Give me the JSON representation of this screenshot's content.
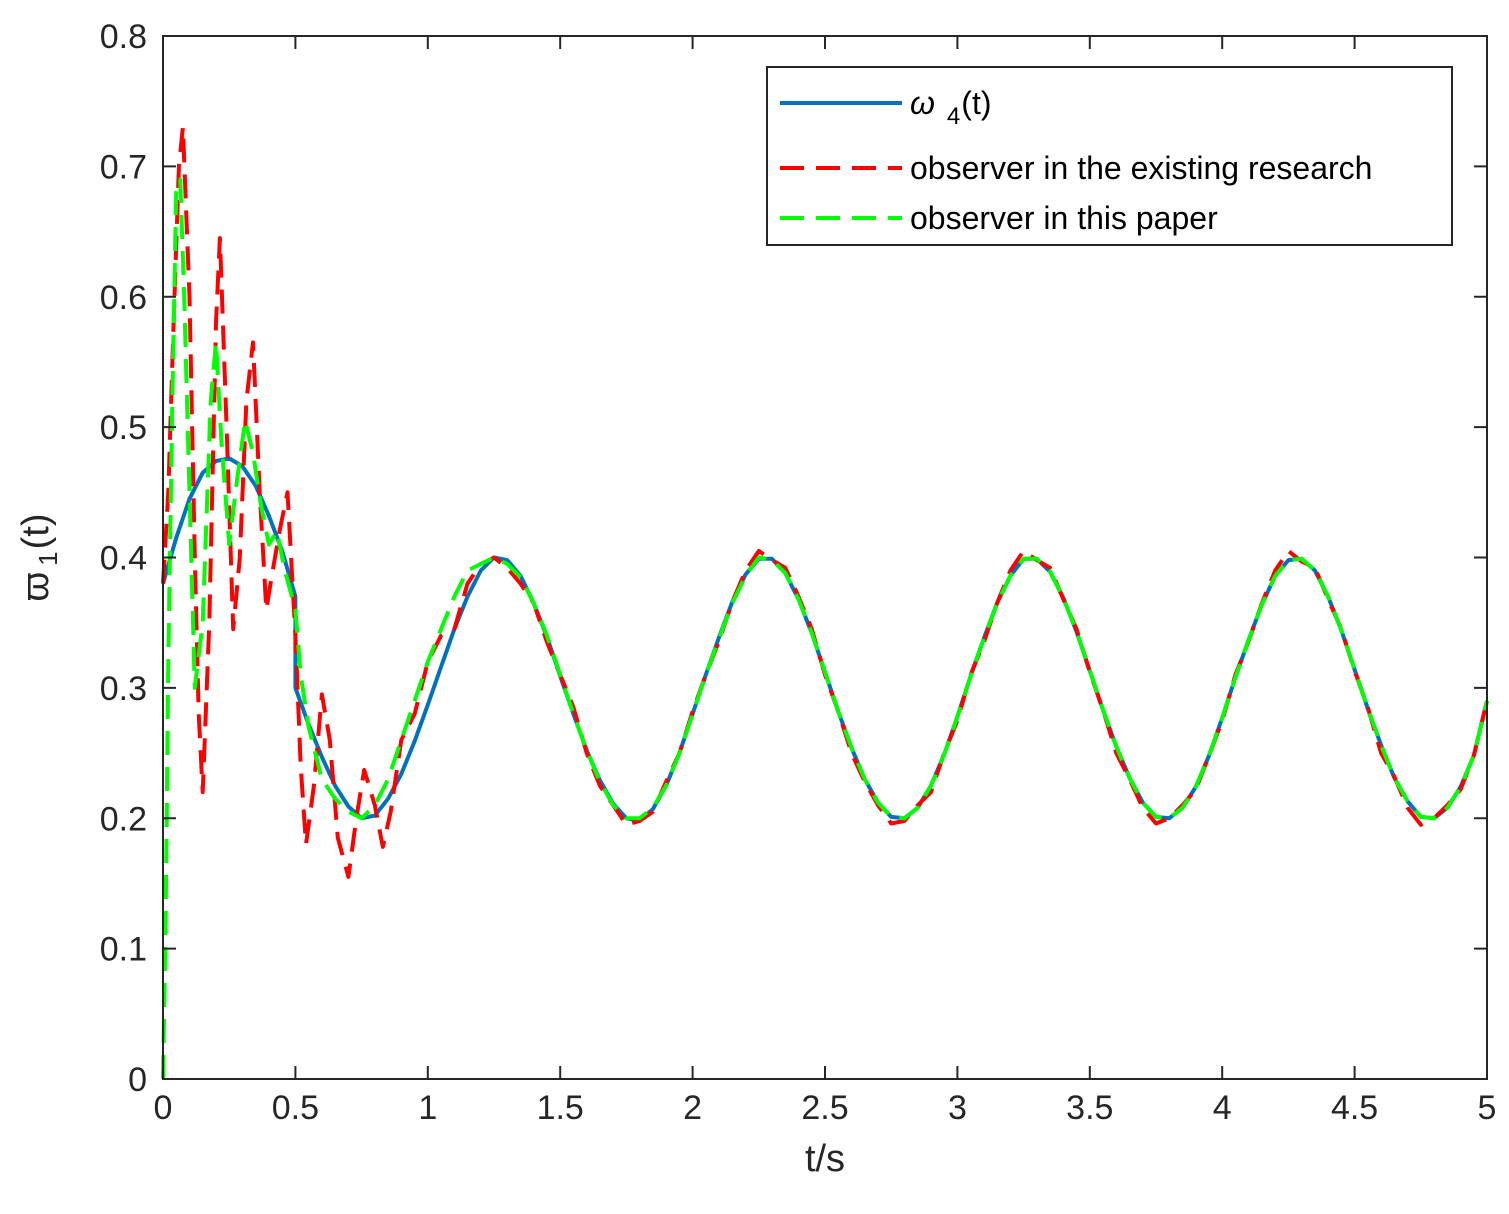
{
  "chart_data": {
    "type": "line",
    "xlabel": "t/s",
    "ylabel_symbol": "ϖ",
    "ylabel_sub": "1",
    "ylabel_suffix": "(t)",
    "xlim": [
      0,
      5
    ],
    "ylim": [
      0,
      0.8
    ],
    "xticks": [
      0,
      0.5,
      1,
      1.5,
      2,
      2.5,
      3,
      3.5,
      4,
      4.5,
      5
    ],
    "xtick_labels": [
      "0",
      "0.5",
      "1",
      "1.5",
      "2",
      "2.5",
      "3",
      "3.5",
      "4",
      "4.5",
      "5"
    ],
    "yticks": [
      0,
      0.1,
      0.2,
      0.3,
      0.4,
      0.5,
      0.6,
      0.7,
      0.8
    ],
    "ytick_labels": [
      "0",
      "0.1",
      "0.2",
      "0.3",
      "0.4",
      "0.5",
      "0.6",
      "0.7",
      "0.8"
    ],
    "grid": false,
    "legend_position": "top-right",
    "series": [
      {
        "name_symbol": "ω",
        "name_sub": "4",
        "name_suffix": "(t)",
        "color": "#0072BD",
        "style": "solid",
        "x": [
          0,
          0.05,
          0.1,
          0.15,
          0.2,
          0.25,
          0.3,
          0.35,
          0.4,
          0.45,
          0.5,
          0.5,
          0.55,
          0.6,
          0.65,
          0.7,
          0.75,
          0.8,
          0.85,
          0.9,
          0.95,
          1.0,
          1.05,
          1.1,
          1.15,
          1.2,
          1.25,
          1.3,
          1.35,
          1.4,
          1.45,
          1.5,
          1.55,
          1.6,
          1.65,
          1.7,
          1.75,
          1.8,
          1.85,
          1.9,
          1.95,
          2.0,
          2.05,
          2.1,
          2.15,
          2.2,
          2.25,
          2.3,
          2.35,
          2.4,
          2.45,
          2.5,
          2.55,
          2.6,
          2.65,
          2.7,
          2.75,
          2.8,
          2.85,
          2.9,
          2.95,
          3.0,
          3.05,
          3.1,
          3.15,
          3.2,
          3.25,
          3.3,
          3.35,
          3.4,
          3.45,
          3.5,
          3.55,
          3.6,
          3.65,
          3.7,
          3.75,
          3.8,
          3.85,
          3.9,
          3.95,
          4.0,
          4.05,
          4.1,
          4.15,
          4.2,
          4.25,
          4.3,
          4.35,
          4.4,
          4.45,
          4.5,
          4.55,
          4.6,
          4.65,
          4.7,
          4.75,
          4.8,
          4.85,
          4.9,
          4.95,
          5.0
        ],
        "y": [
          0.38,
          0.415,
          0.445,
          0.465,
          0.474,
          0.476,
          0.47,
          0.455,
          0.432,
          0.405,
          0.37,
          0.3,
          0.272,
          0.247,
          0.225,
          0.209,
          0.2,
          0.202,
          0.215,
          0.234,
          0.259,
          0.287,
          0.316,
          0.345,
          0.37,
          0.39,
          0.4,
          0.398,
          0.386,
          0.365,
          0.339,
          0.309,
          0.28,
          0.252,
          0.229,
          0.211,
          0.2,
          0.198,
          0.207,
          0.225,
          0.25,
          0.28,
          0.31,
          0.339,
          0.366,
          0.387,
          0.399,
          0.399,
          0.388,
          0.368,
          0.342,
          0.312,
          0.282,
          0.254,
          0.23,
          0.212,
          0.201,
          0.2,
          0.208,
          0.225,
          0.249,
          0.278,
          0.309,
          0.338,
          0.365,
          0.386,
          0.399,
          0.399,
          0.389,
          0.369,
          0.343,
          0.313,
          0.283,
          0.255,
          0.231,
          0.212,
          0.201,
          0.2,
          0.208,
          0.224,
          0.248,
          0.277,
          0.308,
          0.337,
          0.364,
          0.386,
          0.398,
          0.399,
          0.39,
          0.37,
          0.344,
          0.314,
          0.284,
          0.256,
          0.231,
          0.213,
          0.201,
          0.2,
          0.208,
          0.224,
          0.248,
          0.29
        ]
      },
      {
        "name": "observer in the existing research",
        "color": "#FF0000",
        "style": "dashed",
        "x": [
          0,
          0.02,
          0.04,
          0.06,
          0.075,
          0.1,
          0.12,
          0.135,
          0.15,
          0.175,
          0.2,
          0.215,
          0.24,
          0.265,
          0.29,
          0.315,
          0.34,
          0.365,
          0.39,
          0.41,
          0.44,
          0.47,
          0.5,
          0.52,
          0.54,
          0.57,
          0.6,
          0.63,
          0.66,
          0.7,
          0.73,
          0.76,
          0.8,
          0.83,
          0.86,
          0.9,
          0.95,
          1.0,
          1.05,
          1.1,
          1.15,
          1.2,
          1.25,
          1.3,
          1.35,
          1.4,
          1.45,
          1.5,
          1.55,
          1.6,
          1.65,
          1.7,
          1.75,
          1.8,
          1.85,
          1.9,
          1.95,
          2.0,
          2.05,
          2.1,
          2.15,
          2.2,
          2.25,
          2.3,
          2.35,
          2.4,
          2.45,
          2.5,
          2.55,
          2.6,
          2.65,
          2.7,
          2.75,
          2.8,
          2.85,
          2.9,
          2.95,
          3.0,
          3.05,
          3.1,
          3.15,
          3.2,
          3.25,
          3.3,
          3.35,
          3.4,
          3.45,
          3.5,
          3.55,
          3.6,
          3.65,
          3.7,
          3.75,
          3.8,
          3.85,
          3.9,
          3.95,
          4.0,
          4.05,
          4.1,
          4.15,
          4.2,
          4.25,
          4.3,
          4.35,
          4.4,
          4.45,
          4.5,
          4.55,
          4.6,
          4.65,
          4.7,
          4.75,
          4.8,
          4.85,
          4.9,
          4.95,
          5.0
        ],
        "y": [
          0.38,
          0.45,
          0.58,
          0.7,
          0.73,
          0.6,
          0.4,
          0.28,
          0.22,
          0.35,
          0.58,
          0.645,
          0.5,
          0.345,
          0.4,
          0.52,
          0.565,
          0.45,
          0.36,
          0.385,
          0.42,
          0.45,
          0.34,
          0.24,
          0.18,
          0.225,
          0.295,
          0.26,
          0.185,
          0.155,
          0.2,
          0.237,
          0.21,
          0.178,
          0.205,
          0.26,
          0.28,
          0.32,
          0.34,
          0.345,
          0.38,
          0.395,
          0.4,
          0.392,
          0.38,
          0.365,
          0.335,
          0.31,
          0.285,
          0.25,
          0.225,
          0.21,
          0.195,
          0.198,
          0.205,
          0.228,
          0.25,
          0.282,
          0.31,
          0.336,
          0.366,
          0.39,
          0.405,
          0.398,
          0.392,
          0.37,
          0.345,
          0.31,
          0.282,
          0.25,
          0.228,
          0.21,
          0.196,
          0.198,
          0.21,
          0.22,
          0.25,
          0.275,
          0.31,
          0.335,
          0.365,
          0.39,
          0.405,
          0.398,
          0.392,
          0.368,
          0.345,
          0.312,
          0.283,
          0.25,
          0.23,
          0.208,
          0.196,
          0.2,
          0.21,
          0.222,
          0.248,
          0.275,
          0.31,
          0.336,
          0.365,
          0.39,
          0.405,
          0.397,
          0.392,
          0.368,
          0.345,
          0.313,
          0.285,
          0.25,
          0.232,
          0.208,
          0.195,
          0.2,
          0.21,
          0.222,
          0.248,
          0.29
        ]
      },
      {
        "name": "observer in this paper",
        "color": "#00FF00",
        "style": "dashed",
        "x": [
          0,
          0.01,
          0.02,
          0.035,
          0.05,
          0.065,
          0.08,
          0.1,
          0.12,
          0.15,
          0.18,
          0.2,
          0.22,
          0.25,
          0.28,
          0.31,
          0.34,
          0.37,
          0.4,
          0.43,
          0.46,
          0.5,
          0.52,
          0.55,
          0.6,
          0.65,
          0.7,
          0.75,
          0.8,
          0.85,
          0.9,
          0.95,
          1.0,
          1.05,
          1.1,
          1.15,
          1.2,
          1.25,
          1.3,
          1.35,
          1.4,
          1.45,
          1.5,
          1.55,
          1.6,
          1.65,
          1.7,
          1.75,
          1.8,
          1.85,
          1.9,
          1.95,
          2.0,
          2.05,
          2.1,
          2.15,
          2.2,
          2.25,
          2.3,
          2.35,
          2.4,
          2.45,
          2.5,
          2.55,
          2.6,
          2.65,
          2.7,
          2.75,
          2.8,
          2.85,
          2.9,
          2.95,
          3.0,
          3.05,
          3.1,
          3.15,
          3.2,
          3.25,
          3.3,
          3.35,
          3.4,
          3.45,
          3.5,
          3.55,
          3.6,
          3.65,
          3.7,
          3.75,
          3.8,
          3.85,
          3.9,
          3.95,
          4.0,
          4.05,
          4.1,
          4.15,
          4.2,
          4.25,
          4.3,
          4.35,
          4.4,
          4.45,
          4.5,
          4.55,
          4.6,
          4.65,
          4.7,
          4.75,
          4.8,
          4.85,
          4.9,
          4.95,
          5.0
        ],
        "y": [
          0.0,
          0.12,
          0.32,
          0.52,
          0.68,
          0.69,
          0.6,
          0.45,
          0.3,
          0.35,
          0.52,
          0.565,
          0.49,
          0.41,
          0.46,
          0.505,
          0.48,
          0.44,
          0.41,
          0.42,
          0.39,
          0.36,
          0.31,
          0.27,
          0.23,
          0.215,
          0.205,
          0.2,
          0.21,
          0.23,
          0.26,
          0.29,
          0.32,
          0.345,
          0.37,
          0.39,
          0.395,
          0.4,
          0.395,
          0.385,
          0.365,
          0.34,
          0.31,
          0.28,
          0.252,
          0.228,
          0.21,
          0.2,
          0.2,
          0.208,
          0.225,
          0.25,
          0.28,
          0.31,
          0.338,
          0.365,
          0.386,
          0.4,
          0.398,
          0.388,
          0.368,
          0.342,
          0.312,
          0.282,
          0.254,
          0.23,
          0.212,
          0.201,
          0.2,
          0.208,
          0.225,
          0.249,
          0.278,
          0.309,
          0.338,
          0.365,
          0.386,
          0.399,
          0.399,
          0.389,
          0.369,
          0.343,
          0.313,
          0.283,
          0.255,
          0.231,
          0.212,
          0.201,
          0.2,
          0.208,
          0.224,
          0.248,
          0.277,
          0.308,
          0.337,
          0.364,
          0.386,
          0.398,
          0.399,
          0.39,
          0.37,
          0.344,
          0.314,
          0.284,
          0.256,
          0.231,
          0.213,
          0.201,
          0.2,
          0.208,
          0.224,
          0.248,
          0.29
        ]
      }
    ]
  }
}
